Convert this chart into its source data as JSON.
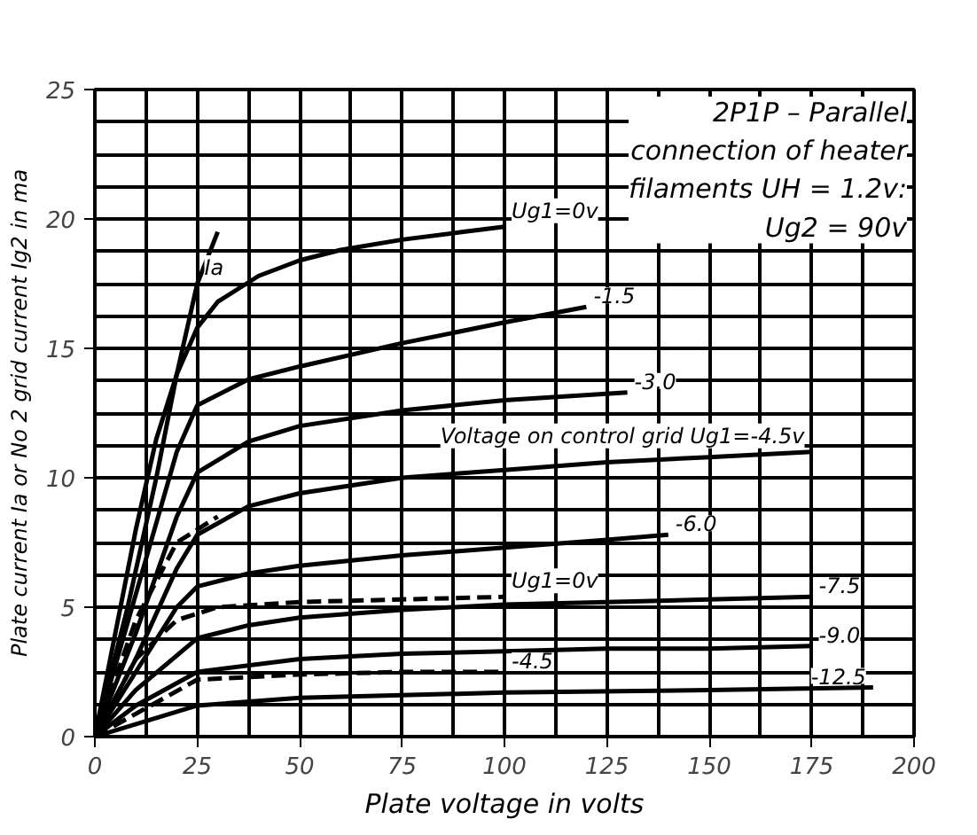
{
  "chart_data": {
    "type": "line",
    "title": "2P1P – Parallel connection of heater filaments UH = 1.2v: Ug2 = 90v",
    "xlabel": "Plate voltage in volts",
    "ylabel": "Plate current Ia or No 2 grid current Ig2 in ma",
    "xlim": [
      0,
      200
    ],
    "ylim": [
      0,
      25
    ],
    "xticks": [
      0,
      25,
      50,
      75,
      100,
      125,
      150,
      175,
      200
    ],
    "yticks": [
      0,
      5,
      10,
      15,
      20,
      25
    ],
    "grid": true,
    "marker": "none",
    "series": [
      {
        "color": "#000000",
        "x": [
          0,
          5,
          10,
          15,
          20,
          25,
          30,
          40,
          50,
          60,
          75,
          90,
          100
        ],
        "values": [
          0,
          4,
          8,
          11.5,
          14,
          15.8,
          16.8,
          17.8,
          18.4,
          18.8,
          19.2,
          19.5,
          19.7
        ]
      },
      {
        "color": "#000000",
        "x": [
          0,
          10,
          20,
          25,
          37.5,
          50,
          75,
          100,
          120
        ],
        "values": [
          0,
          5.5,
          11,
          12.8,
          13.8,
          14.3,
          15.2,
          16,
          16.6
        ]
      },
      {
        "color": "#000000",
        "x": [
          0,
          10,
          20,
          25,
          37.5,
          50,
          75,
          100,
          130
        ],
        "values": [
          0,
          4,
          8.5,
          10.2,
          11.4,
          12,
          12.6,
          13,
          13.3
        ]
      },
      {
        "color": "#000000",
        "x": [
          0,
          10,
          20,
          25,
          37.5,
          50,
          75,
          100,
          125,
          150,
          175
        ],
        "values": [
          0,
          3,
          6.5,
          7.8,
          8.9,
          9.4,
          10,
          10.3,
          10.6,
          10.8,
          11
        ]
      },
      {
        "color": "#000000",
        "x": [
          0,
          10,
          20,
          25,
          37.5,
          50,
          75,
          100,
          125,
          140
        ],
        "values": [
          0,
          2.5,
          5,
          5.8,
          6.3,
          6.6,
          7,
          7.3,
          7.6,
          7.8
        ]
      },
      {
        "color": "#000000",
        "x": [
          0,
          10,
          25,
          37.5,
          50,
          75,
          100,
          125,
          150,
          175
        ],
        "values": [
          0,
          1.8,
          3.8,
          4.3,
          4.6,
          4.9,
          5.1,
          5.2,
          5.3,
          5.4
        ]
      },
      {
        "color": "#000000",
        "x": [
          0,
          10,
          25,
          50,
          75,
          100,
          125,
          150,
          175
        ],
        "values": [
          0,
          1.2,
          2.5,
          3,
          3.2,
          3.3,
          3.4,
          3.4,
          3.5
        ]
      },
      {
        "color": "#000000",
        "x": [
          0,
          25,
          50,
          100,
          150,
          190
        ],
        "values": [
          0,
          1.2,
          1.5,
          1.7,
          1.8,
          1.9
        ]
      },
      {
        "color": "#000000",
        "line_style": "dashed",
        "x": [
          0,
          10,
          20,
          30,
          50,
          75,
          100
        ],
        "values": [
          0,
          3,
          4.5,
          5,
          5.2,
          5.3,
          5.4
        ]
      },
      {
        "color": "#000000",
        "line_style": "dashed",
        "x": [
          0,
          25,
          50,
          75,
          100
        ],
        "values": [
          0,
          2.2,
          2.4,
          2.5,
          2.5
        ]
      },
      {
        "color": "#000000",
        "x": [
          0,
          8,
          15,
          20,
          25,
          30
        ],
        "values": [
          0,
          5,
          10,
          14,
          17.5,
          19.5
        ]
      },
      {
        "color": "#000000",
        "line_style": "dashed",
        "x": [
          0,
          10,
          20,
          30
        ],
        "values": [
          0,
          4.5,
          7.5,
          8.5
        ]
      }
    ],
    "annotations": [
      {
        "text": "Ug1=0v",
        "x": 100,
        "y": 19.7
      },
      {
        "text": "-1.5",
        "x": 120,
        "y": 16.6
      },
      {
        "text": "-3.0",
        "x": 130,
        "y": 13.3
      },
      {
        "text": "Voltage on control grid Ug1=-4.5v",
        "x": 175,
        "y": 11
      },
      {
        "text": "-6.0",
        "x": 140,
        "y": 7.8
      },
      {
        "text": "-7.5",
        "x": 175,
        "y": 5.4
      },
      {
        "text": "-9.0",
        "x": 175,
        "y": 3.5
      },
      {
        "text": "-12.5",
        "x": 190,
        "y": 1.9
      },
      {
        "text": "Ug1=0v",
        "x": 100,
        "y": 5.4
      },
      {
        "text": "-4.5",
        "x": 100,
        "y": 2.5
      },
      {
        "text": "Ia",
        "x": 25,
        "y": 17.5
      }
    ]
  }
}
